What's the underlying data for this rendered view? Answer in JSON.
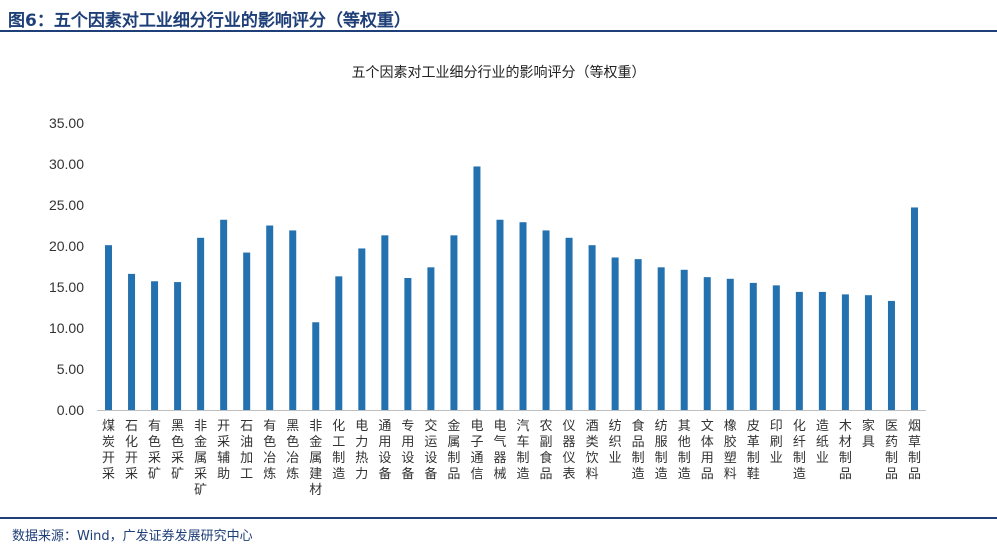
{
  "header": {
    "label": "图6：五个因素对工业细分行业的影响评分（等权重）"
  },
  "chart_data": {
    "type": "bar",
    "title": "五个因素对工业细分行业的影响评分（等权重）",
    "xlabel": "",
    "ylabel": "",
    "ylim": [
      0,
      35
    ],
    "yticks": [
      "0.00",
      "5.00",
      "10.00",
      "15.00",
      "20.00",
      "25.00",
      "30.00",
      "35.00"
    ],
    "grid": false,
    "bar_color": "#2471b0",
    "categories": [
      "煤炭开采",
      "石化开采",
      "有色采矿",
      "黑色采矿",
      "非金属采矿",
      "开采辅助",
      "石油加工",
      "有色冶炼",
      "黑色冶炼",
      "非金属建材",
      "化工制造",
      "电力热力",
      "通用设备",
      "专用设备",
      "交运设备",
      "金属制品",
      "电子通信",
      "电气器械",
      "汽车制造",
      "农副食品",
      "仪器仪表",
      "酒类饮料",
      "纺织业",
      "食品制造",
      "纺服制造",
      "其他制造",
      "文体用品",
      "橡胶塑料",
      "皮革制鞋",
      "印刷业",
      "化纤制造",
      "造纸业",
      "木材制品",
      "家具",
      "医药制品",
      "烟草制品"
    ],
    "values": [
      20.1,
      16.6,
      15.7,
      15.6,
      21.0,
      23.2,
      19.2,
      22.5,
      21.9,
      10.7,
      16.3,
      19.7,
      21.3,
      16.1,
      17.4,
      21.3,
      29.7,
      23.2,
      22.9,
      21.9,
      21.0,
      20.1,
      18.6,
      18.4,
      17.4,
      17.1,
      16.2,
      16.0,
      15.5,
      15.2,
      14.4,
      14.4,
      14.1,
      14.0,
      13.3,
      24.7
    ]
  },
  "footer": {
    "source": "数据来源：Wind，广发证券发展研究中心"
  }
}
